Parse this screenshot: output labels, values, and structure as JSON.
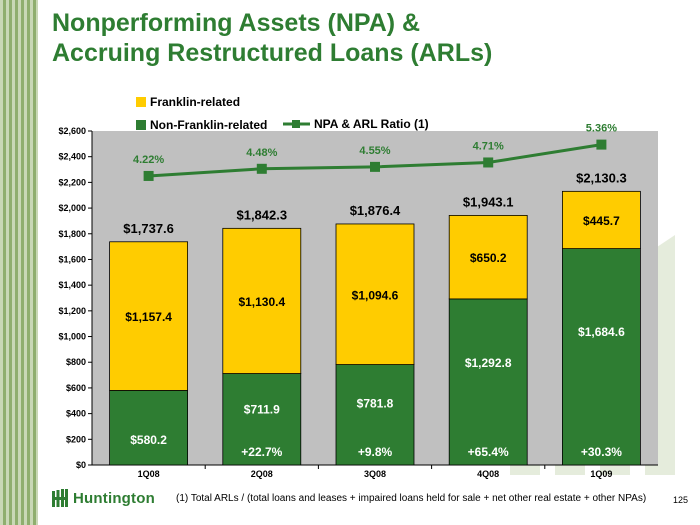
{
  "title_line1": "Nonperforming Assets (NPA) &",
  "title_line2": "Accruing Restructured Loans (ARLs)",
  "chart_data": {
    "type": "bar",
    "stacked": true,
    "categories": [
      "1Q08",
      "2Q08",
      "3Q08",
      "4Q08",
      "1Q09"
    ],
    "series": [
      {
        "name": "Non-Franklin-related",
        "color": "#2e7d32",
        "values": [
          580.2,
          711.9,
          781.8,
          1292.8,
          1684.6
        ],
        "labels": [
          "$580.2",
          "$711.9",
          "$781.8",
          "$1,292.8",
          "$1,684.6"
        ]
      },
      {
        "name": "Franklin-related",
        "color": "#ffcc00",
        "values": [
          1157.4,
          1130.4,
          1094.6,
          650.2,
          445.7
        ],
        "labels": [
          "$1,157.4",
          "$1,130.4",
          "$1,094.6",
          "$650.2",
          "$445.7"
        ]
      }
    ],
    "totals": [
      "$1,737.6",
      "$1,842.3",
      "$1,876.4",
      "$1,943.1",
      "$2,130.3"
    ],
    "growth_labels": [
      "",
      "+22.7%",
      "+9.8%",
      "+65.4%",
      "+30.3%"
    ],
    "line_series": {
      "name": "NPA & ARL Ratio (1)",
      "color": "#2e7d32",
      "values": [
        4.22,
        4.48,
        4.55,
        4.71,
        5.36
      ],
      "labels": [
        "4.22%",
        "4.48%",
        "4.55%",
        "4.71%",
        "5.36%"
      ]
    },
    "yticks": [
      "$0",
      "$200",
      "$400",
      "$600",
      "$800",
      "$1,000",
      "$1,200",
      "$1,400",
      "$1,600",
      "$1,800",
      "$2,000",
      "$2,200",
      "$2,400",
      "$2,600"
    ],
    "ylim": [
      0,
      2600
    ],
    "grid": false,
    "legend_position": "top-left",
    "plot_background": "#c0c0c0"
  },
  "footnote": "(1) Total ARLs / (total loans and leases + impaired loans held for sale + net other real estate + other NPAs)",
  "logo_text": "Huntington",
  "logo_icon": "huntington-logo-icon",
  "page_number": "125"
}
